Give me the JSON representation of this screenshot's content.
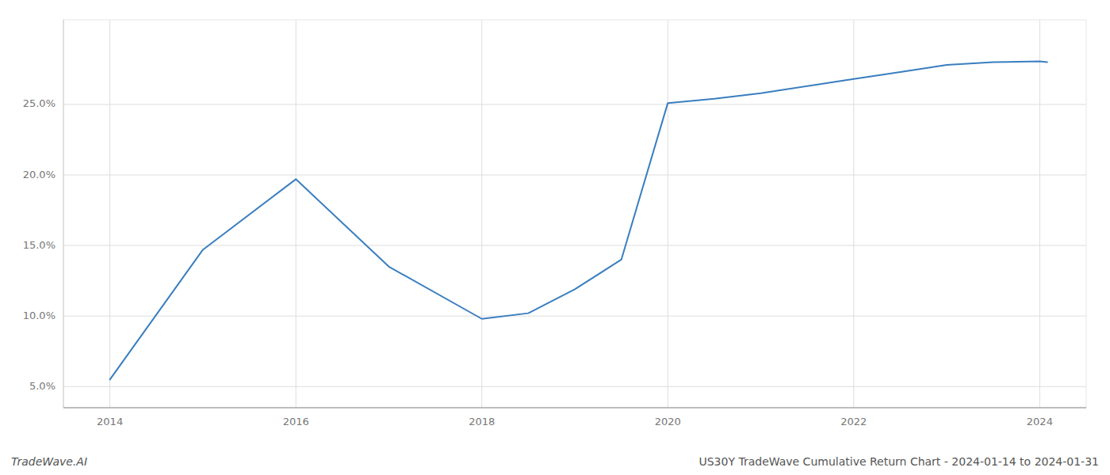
{
  "chart_data": {
    "type": "line",
    "x": [
      2014,
      2015,
      2016,
      2017,
      2018,
      2018.5,
      2019,
      2019.5,
      2020,
      2020.5,
      2021,
      2021.5,
      2022,
      2022.5,
      2023,
      2023.5,
      2024,
      2024.08
    ],
    "values": [
      5.5,
      14.7,
      19.7,
      13.5,
      9.8,
      10.2,
      11.9,
      14.0,
      25.1,
      25.4,
      25.8,
      26.3,
      26.8,
      27.3,
      27.8,
      28.0,
      28.05,
      28.0
    ],
    "color": "#3a7ebf",
    "xlim": [
      2013.5,
      2024.5
    ],
    "xticks": [
      2014,
      2016,
      2018,
      2020,
      2022,
      2024
    ],
    "ylim": [
      3.5,
      31.0
    ],
    "yticks": [
      {
        "value": 5.0,
        "label": "5.0%"
      },
      {
        "value": 10.0,
        "label": "10.0%"
      },
      {
        "value": 15.0,
        "label": "15.0%"
      },
      {
        "value": 20.0,
        "label": "20.0%"
      },
      {
        "value": 25.0,
        "label": "25.0%"
      }
    ],
    "grid": true,
    "annotations": [
      "TradeWave.AI",
      "US30Y TradeWave Cumulative Return Chart - 2024-01-14 to 2024-01-31"
    ]
  }
}
